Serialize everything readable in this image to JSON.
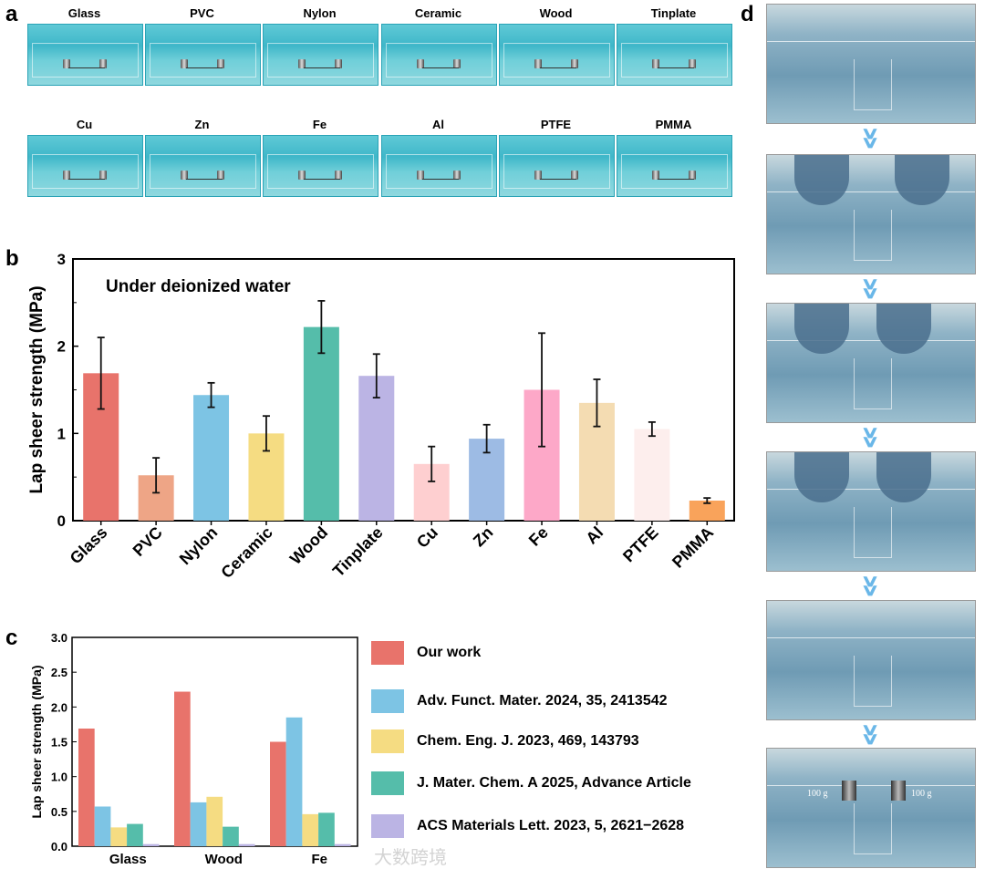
{
  "panels": {
    "a": "a",
    "b": "b",
    "c": "c",
    "d": "d"
  },
  "panel_a": {
    "labels": [
      "Glass",
      "PVC",
      "Nylon",
      "Ceramic",
      "Wood",
      "Tinplate",
      "Cu",
      "Zn",
      "Fe",
      "Al",
      "PTFE",
      "PMMA"
    ]
  },
  "panel_d": {
    "weight_left": "100 g",
    "weight_right": "100 g"
  },
  "watermark": "大数跨境",
  "chart_data": [
    {
      "type": "bar",
      "annotation": "Under deionized water",
      "ylabel": "Lap sheer strength (MPa)",
      "xlabel": "",
      "ylim": [
        0,
        3
      ],
      "yticks": [
        0,
        1,
        2,
        3
      ],
      "categories": [
        "Glass",
        "PVC",
        "Nylon",
        "Ceramic",
        "Wood",
        "Tinplate",
        "Cu",
        "Zn",
        "Fe",
        "Al",
        "PTFE",
        "PMMA"
      ],
      "values": [
        1.69,
        0.52,
        1.44,
        1.0,
        2.22,
        1.66,
        0.65,
        0.94,
        1.5,
        1.35,
        1.05,
        0.23
      ],
      "errors": [
        0.41,
        0.2,
        0.14,
        0.2,
        0.3,
        0.25,
        0.2,
        0.16,
        0.65,
        0.27,
        0.08,
        0.03
      ],
      "colors": [
        "#e8736b",
        "#eea586",
        "#7dc4e4",
        "#f5dc82",
        "#55bdaa",
        "#bbb4e4",
        "#fecfd0",
        "#9dbbe4",
        "#fda8c8",
        "#f4dcb2",
        "#fdeeed",
        "#f9a35b"
      ]
    },
    {
      "type": "bar",
      "ylabel": "Lap sheer strength (MPa)",
      "ylim": [
        0,
        3.0
      ],
      "yticks": [
        "0.0",
        "0.5",
        "1.0",
        "1.5",
        "2.0",
        "2.5",
        "3.0"
      ],
      "categories": [
        "Glass",
        "Wood",
        "Fe"
      ],
      "series": [
        {
          "name": "Our work",
          "color": "#e8736b",
          "values": [
            1.69,
            2.22,
            1.5
          ]
        },
        {
          "name": "Adv. Funct. Mater. 2024, 35, 2413542",
          "color": "#7dc4e4",
          "values": [
            0.57,
            0.63,
            1.85
          ]
        },
        {
          "name": "Chem. Eng. J. 2023, 469, 143793",
          "color": "#f5dc82",
          "values": [
            0.27,
            0.71,
            0.46
          ]
        },
        {
          "name": "J. Mater. Chem. A 2025, Advance Article",
          "color": "#55bdaa",
          "values": [
            0.32,
            0.28,
            0.48
          ]
        },
        {
          "name": "ACS Materials Lett. 2023, 5, 2621−2628",
          "color": "#bbb4e4",
          "values": [
            0.03,
            0.03,
            0.03
          ]
        }
      ],
      "legend": "right"
    }
  ]
}
